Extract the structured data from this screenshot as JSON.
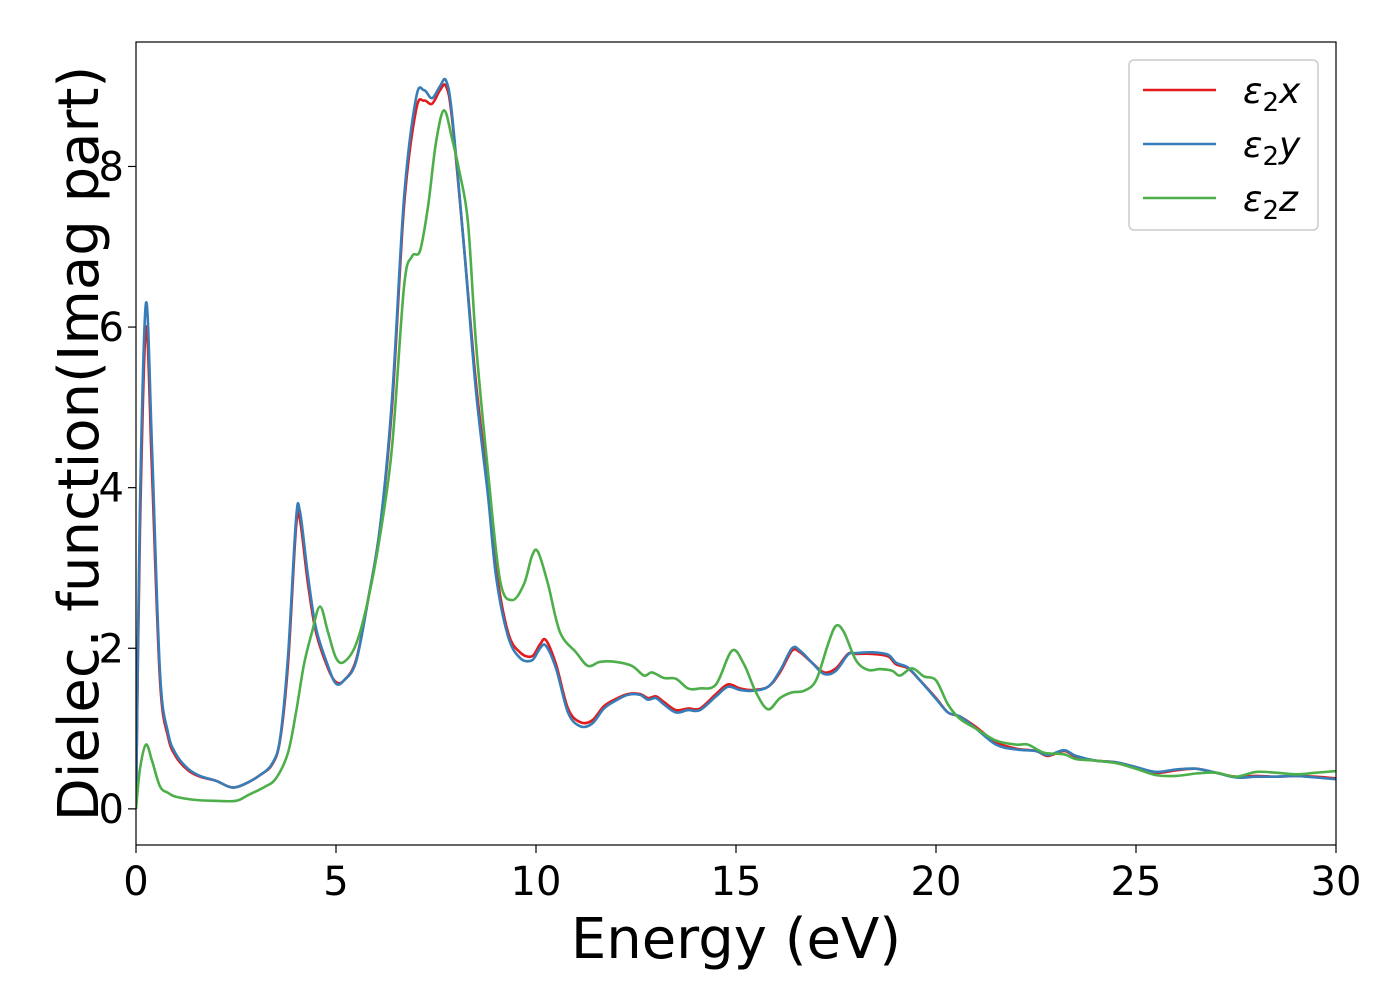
{
  "chart_data": {
    "type": "line",
    "xlabel": "Energy (eV)",
    "ylabel": "Dielec. function(Imag part)",
    "xlim": [
      0,
      30
    ],
    "ylim": [
      -0.45,
      9.55
    ],
    "xticks": [
      0,
      5,
      10,
      15,
      20,
      25,
      30
    ],
    "xtick_labels": [
      "0",
      "5",
      "10",
      "15",
      "20",
      "25",
      "30"
    ],
    "yticks": [
      0,
      2,
      4,
      6,
      8
    ],
    "ytick_labels": [
      "0",
      "2",
      "4",
      "6",
      "8"
    ],
    "legend_position": "top-right",
    "grid": false,
    "series": [
      {
        "name": "ε₂x",
        "legend_base": "ε",
        "legend_sub": "2",
        "legend_var": "x",
        "color": "#e41a1c",
        "points": [
          [
            0,
            0
          ],
          [
            0.1,
            3.5
          ],
          [
            0.25,
            6.0
          ],
          [
            0.4,
            4.2
          ],
          [
            0.6,
            1.6
          ],
          [
            0.8,
            0.9
          ],
          [
            1.0,
            0.65
          ],
          [
            1.3,
            0.48
          ],
          [
            1.6,
            0.4
          ],
          [
            2.0,
            0.35
          ],
          [
            2.3,
            0.28
          ],
          [
            2.5,
            0.27
          ],
          [
            2.8,
            0.33
          ],
          [
            3.1,
            0.42
          ],
          [
            3.4,
            0.55
          ],
          [
            3.6,
            0.85
          ],
          [
            3.8,
            1.8
          ],
          [
            4.0,
            3.5
          ],
          [
            4.1,
            3.6
          ],
          [
            4.3,
            2.8
          ],
          [
            4.5,
            2.2
          ],
          [
            4.8,
            1.75
          ],
          [
            5.0,
            1.58
          ],
          [
            5.2,
            1.6
          ],
          [
            5.5,
            1.85
          ],
          [
            5.8,
            2.6
          ],
          [
            6.1,
            3.5
          ],
          [
            6.4,
            5.0
          ],
          [
            6.7,
            7.5
          ],
          [
            7.0,
            8.7
          ],
          [
            7.2,
            8.82
          ],
          [
            7.4,
            8.78
          ],
          [
            7.6,
            8.95
          ],
          [
            7.75,
            9.0
          ],
          [
            7.9,
            8.6
          ],
          [
            8.2,
            7.0
          ],
          [
            8.5,
            5.3
          ],
          [
            8.8,
            4.0
          ],
          [
            9.0,
            3.0
          ],
          [
            9.3,
            2.2
          ],
          [
            9.6,
            1.95
          ],
          [
            9.9,
            1.9
          ],
          [
            10.1,
            2.05
          ],
          [
            10.25,
            2.1
          ],
          [
            10.5,
            1.8
          ],
          [
            10.8,
            1.25
          ],
          [
            11.1,
            1.08
          ],
          [
            11.4,
            1.1
          ],
          [
            11.7,
            1.28
          ],
          [
            12.0,
            1.37
          ],
          [
            12.3,
            1.43
          ],
          [
            12.6,
            1.43
          ],
          [
            12.8,
            1.38
          ],
          [
            13.0,
            1.4
          ],
          [
            13.2,
            1.33
          ],
          [
            13.5,
            1.23
          ],
          [
            13.8,
            1.25
          ],
          [
            14.1,
            1.25
          ],
          [
            14.5,
            1.43
          ],
          [
            14.8,
            1.55
          ],
          [
            15.1,
            1.5
          ],
          [
            15.4,
            1.48
          ],
          [
            15.8,
            1.52
          ],
          [
            16.1,
            1.7
          ],
          [
            16.4,
            1.97
          ],
          [
            16.6,
            1.95
          ],
          [
            16.9,
            1.82
          ],
          [
            17.2,
            1.7
          ],
          [
            17.5,
            1.75
          ],
          [
            17.8,
            1.93
          ],
          [
            18.0,
            1.93
          ],
          [
            18.4,
            1.93
          ],
          [
            18.8,
            1.9
          ],
          [
            19.0,
            1.8
          ],
          [
            19.3,
            1.75
          ],
          [
            19.6,
            1.6
          ],
          [
            20.0,
            1.38
          ],
          [
            20.3,
            1.2
          ],
          [
            20.6,
            1.15
          ],
          [
            21.0,
            1.02
          ],
          [
            21.5,
            0.83
          ],
          [
            22.0,
            0.75
          ],
          [
            22.5,
            0.72
          ],
          [
            22.8,
            0.66
          ],
          [
            23.2,
            0.72
          ],
          [
            23.5,
            0.65
          ],
          [
            24.0,
            0.6
          ],
          [
            24.5,
            0.58
          ],
          [
            25.0,
            0.52
          ],
          [
            25.5,
            0.45
          ],
          [
            26.0,
            0.48
          ],
          [
            26.5,
            0.5
          ],
          [
            27.0,
            0.45
          ],
          [
            27.5,
            0.4
          ],
          [
            28.0,
            0.41
          ],
          [
            28.5,
            0.4
          ],
          [
            29.0,
            0.41
          ],
          [
            29.5,
            0.4
          ],
          [
            30.0,
            0.38
          ]
        ]
      },
      {
        "name": "ε₂y",
        "legend_base": "ε",
        "legend_sub": "2",
        "legend_var": "y",
        "color": "#377eb8",
        "points": [
          [
            0,
            0
          ],
          [
            0.1,
            3.8
          ],
          [
            0.25,
            6.3
          ],
          [
            0.4,
            4.5
          ],
          [
            0.6,
            1.7
          ],
          [
            0.8,
            0.95
          ],
          [
            1.0,
            0.68
          ],
          [
            1.3,
            0.5
          ],
          [
            1.6,
            0.41
          ],
          [
            2.0,
            0.35
          ],
          [
            2.3,
            0.28
          ],
          [
            2.5,
            0.27
          ],
          [
            2.8,
            0.33
          ],
          [
            3.1,
            0.42
          ],
          [
            3.4,
            0.56
          ],
          [
            3.6,
            0.87
          ],
          [
            3.8,
            1.9
          ],
          [
            4.0,
            3.6
          ],
          [
            4.1,
            3.7
          ],
          [
            4.3,
            2.9
          ],
          [
            4.5,
            2.25
          ],
          [
            4.8,
            1.78
          ],
          [
            5.0,
            1.56
          ],
          [
            5.2,
            1.6
          ],
          [
            5.5,
            1.83
          ],
          [
            5.8,
            2.6
          ],
          [
            6.1,
            3.5
          ],
          [
            6.4,
            5.1
          ],
          [
            6.7,
            7.6
          ],
          [
            7.0,
            8.85
          ],
          [
            7.2,
            8.95
          ],
          [
            7.4,
            8.85
          ],
          [
            7.6,
            9.0
          ],
          [
            7.75,
            9.07
          ],
          [
            7.9,
            8.65
          ],
          [
            8.2,
            7.0
          ],
          [
            8.5,
            5.2
          ],
          [
            8.8,
            3.9
          ],
          [
            9.0,
            2.9
          ],
          [
            9.3,
            2.15
          ],
          [
            9.6,
            1.88
          ],
          [
            9.9,
            1.85
          ],
          [
            10.1,
            2.0
          ],
          [
            10.25,
            2.03
          ],
          [
            10.5,
            1.75
          ],
          [
            10.8,
            1.2
          ],
          [
            11.1,
            1.03
          ],
          [
            11.4,
            1.06
          ],
          [
            11.7,
            1.25
          ],
          [
            12.0,
            1.35
          ],
          [
            12.3,
            1.42
          ],
          [
            12.6,
            1.42
          ],
          [
            12.8,
            1.36
          ],
          [
            13.0,
            1.38
          ],
          [
            13.2,
            1.3
          ],
          [
            13.5,
            1.2
          ],
          [
            13.8,
            1.23
          ],
          [
            14.1,
            1.23
          ],
          [
            14.5,
            1.4
          ],
          [
            14.8,
            1.52
          ],
          [
            15.1,
            1.48
          ],
          [
            15.4,
            1.47
          ],
          [
            15.8,
            1.52
          ],
          [
            16.1,
            1.72
          ],
          [
            16.4,
            2.0
          ],
          [
            16.6,
            1.97
          ],
          [
            16.9,
            1.82
          ],
          [
            17.2,
            1.68
          ],
          [
            17.5,
            1.72
          ],
          [
            17.8,
            1.92
          ],
          [
            18.0,
            1.94
          ],
          [
            18.4,
            1.95
          ],
          [
            18.8,
            1.92
          ],
          [
            19.0,
            1.82
          ],
          [
            19.3,
            1.76
          ],
          [
            19.6,
            1.6
          ],
          [
            20.0,
            1.37
          ],
          [
            20.3,
            1.2
          ],
          [
            20.6,
            1.15
          ],
          [
            21.0,
            1.0
          ],
          [
            21.5,
            0.8
          ],
          [
            22.0,
            0.74
          ],
          [
            22.5,
            0.72
          ],
          [
            22.8,
            0.67
          ],
          [
            23.2,
            0.73
          ],
          [
            23.5,
            0.66
          ],
          [
            24.0,
            0.6
          ],
          [
            24.5,
            0.58
          ],
          [
            25.0,
            0.52
          ],
          [
            25.5,
            0.46
          ],
          [
            26.0,
            0.49
          ],
          [
            26.5,
            0.5
          ],
          [
            27.0,
            0.45
          ],
          [
            27.5,
            0.39
          ],
          [
            28.0,
            0.4
          ],
          [
            28.5,
            0.4
          ],
          [
            29.0,
            0.41
          ],
          [
            29.5,
            0.39
          ],
          [
            30.0,
            0.37
          ]
        ]
      },
      {
        "name": "ε₂z",
        "legend_base": "ε",
        "legend_sub": "2",
        "legend_var": "z",
        "color": "#4daf4a",
        "points": [
          [
            0,
            0
          ],
          [
            0.1,
            0.5
          ],
          [
            0.25,
            0.8
          ],
          [
            0.4,
            0.6
          ],
          [
            0.6,
            0.28
          ],
          [
            0.8,
            0.2
          ],
          [
            1.0,
            0.15
          ],
          [
            1.5,
            0.11
          ],
          [
            2.0,
            0.1
          ],
          [
            2.5,
            0.1
          ],
          [
            2.8,
            0.17
          ],
          [
            3.2,
            0.27
          ],
          [
            3.5,
            0.38
          ],
          [
            3.8,
            0.7
          ],
          [
            4.0,
            1.2
          ],
          [
            4.2,
            1.8
          ],
          [
            4.4,
            2.2
          ],
          [
            4.6,
            2.52
          ],
          [
            4.8,
            2.2
          ],
          [
            5.0,
            1.88
          ],
          [
            5.2,
            1.83
          ],
          [
            5.5,
            2.05
          ],
          [
            5.8,
            2.6
          ],
          [
            6.1,
            3.4
          ],
          [
            6.4,
            4.5
          ],
          [
            6.7,
            6.5
          ],
          [
            6.9,
            6.88
          ],
          [
            7.1,
            6.95
          ],
          [
            7.3,
            7.5
          ],
          [
            7.5,
            8.3
          ],
          [
            7.7,
            8.7
          ],
          [
            7.9,
            8.35
          ],
          [
            8.1,
            7.9
          ],
          [
            8.3,
            7.3
          ],
          [
            8.5,
            5.8
          ],
          [
            8.8,
            4.2
          ],
          [
            9.1,
            2.85
          ],
          [
            9.4,
            2.6
          ],
          [
            9.7,
            2.8
          ],
          [
            9.9,
            3.15
          ],
          [
            10.05,
            3.2
          ],
          [
            10.3,
            2.8
          ],
          [
            10.6,
            2.2
          ],
          [
            11.0,
            1.95
          ],
          [
            11.3,
            1.78
          ],
          [
            11.6,
            1.83
          ],
          [
            12.0,
            1.83
          ],
          [
            12.4,
            1.78
          ],
          [
            12.7,
            1.66
          ],
          [
            12.9,
            1.7
          ],
          [
            13.2,
            1.63
          ],
          [
            13.5,
            1.62
          ],
          [
            13.8,
            1.5
          ],
          [
            14.1,
            1.5
          ],
          [
            14.5,
            1.55
          ],
          [
            14.9,
            1.97
          ],
          [
            15.2,
            1.8
          ],
          [
            15.5,
            1.45
          ],
          [
            15.8,
            1.24
          ],
          [
            16.1,
            1.38
          ],
          [
            16.4,
            1.45
          ],
          [
            16.7,
            1.47
          ],
          [
            17.0,
            1.6
          ],
          [
            17.3,
            2.05
          ],
          [
            17.5,
            2.28
          ],
          [
            17.7,
            2.2
          ],
          [
            18.0,
            1.85
          ],
          [
            18.3,
            1.73
          ],
          [
            18.6,
            1.74
          ],
          [
            18.9,
            1.72
          ],
          [
            19.1,
            1.66
          ],
          [
            19.4,
            1.75
          ],
          [
            19.7,
            1.65
          ],
          [
            20.0,
            1.6
          ],
          [
            20.3,
            1.3
          ],
          [
            20.6,
            1.12
          ],
          [
            21.0,
            1.0
          ],
          [
            21.5,
            0.85
          ],
          [
            22.0,
            0.8
          ],
          [
            22.3,
            0.8
          ],
          [
            22.7,
            0.7
          ],
          [
            23.2,
            0.68
          ],
          [
            23.5,
            0.62
          ],
          [
            24.0,
            0.6
          ],
          [
            24.5,
            0.57
          ],
          [
            25.0,
            0.5
          ],
          [
            25.5,
            0.42
          ],
          [
            26.0,
            0.41
          ],
          [
            26.5,
            0.44
          ],
          [
            27.0,
            0.45
          ],
          [
            27.5,
            0.4
          ],
          [
            28.0,
            0.46
          ],
          [
            28.5,
            0.45
          ],
          [
            29.0,
            0.43
          ],
          [
            29.5,
            0.45
          ],
          [
            30.0,
            0.47
          ]
        ]
      }
    ]
  }
}
